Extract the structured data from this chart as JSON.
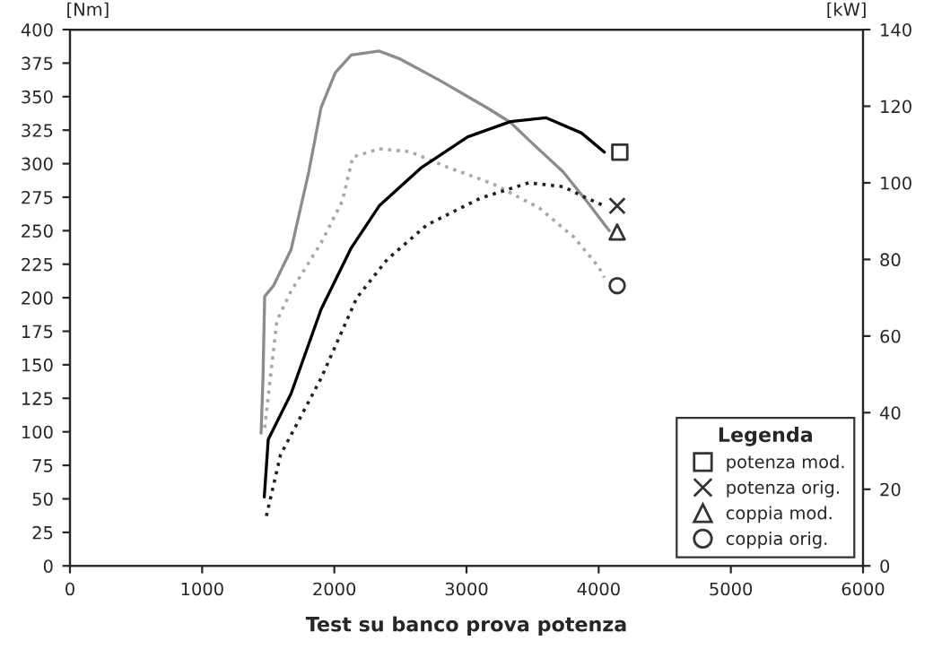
{
  "chart_data": {
    "type": "line",
    "title": "Test su banco prova potenza",
    "ylabel": "[Nm]",
    "y2label": "[kW]",
    "legend_title": "Legenda",
    "legend": "bottom right",
    "grid": false,
    "xlim": [
      0,
      6000
    ],
    "xticks": [
      0,
      1000,
      2000,
      3000,
      4000,
      5000,
      6000
    ],
    "ylim": [
      0,
      400
    ],
    "yticks": [
      0,
      25,
      50,
      75,
      100,
      125,
      150,
      175,
      200,
      225,
      250,
      275,
      300,
      325,
      350,
      375,
      400
    ],
    "y2lim": [
      0,
      140
    ],
    "y2ticks": [
      0,
      20,
      40,
      60,
      80,
      100,
      120,
      140
    ],
    "series": [
      {
        "color": "#000000",
        "axis": "y2",
        "line_style": "solid",
        "x": [
          1470,
          1500,
          1673,
          1900,
          2128,
          2340,
          2660,
          3010,
          3333,
          3600,
          3870,
          4043
        ],
        "values": [
          18,
          33,
          45,
          67,
          83,
          94,
          104,
          112,
          116,
          117,
          113,
          108
        ]
      },
      {
        "color": "#222222",
        "axis": "y2",
        "line_style": "dotted",
        "x": [
          1486,
          1593,
          1900,
          2170,
          2400,
          2700,
          3105,
          3470,
          3730,
          3910,
          4043
        ],
        "values": [
          13,
          29,
          49,
          70,
          80,
          89,
          96,
          100,
          99,
          96,
          94
        ]
      },
      {
        "color": "#8c8c8c",
        "axis": "y",
        "line_style": "solid",
        "x": [
          1446,
          1460,
          1473,
          1540,
          1673,
          1807,
          1900,
          2008,
          2128,
          2340,
          2500,
          2800,
          3150,
          3330,
          3500,
          3730,
          3910,
          4080
        ],
        "values": [
          99,
          139,
          201,
          209,
          236,
          294,
          342,
          368,
          381,
          384,
          378,
          362,
          342,
          331,
          315,
          294,
          272,
          250
        ]
      },
      {
        "color": "#a8a8a8",
        "axis": "y",
        "line_style": "dotted",
        "x": [
          1473,
          1566,
          1673,
          1900,
          2060,
          2140,
          2340,
          2570,
          2840,
          3200,
          3550,
          3815,
          4000,
          4043
        ],
        "values": [
          103,
          183,
          205,
          241,
          272,
          305,
          311,
          309,
          298,
          285,
          267,
          245,
          223,
          215
        ]
      },
      {
        "name": "potenza mod.",
        "type": "scatter",
        "color": "#333333",
        "axis": "y2",
        "marker": "square",
        "x": [
          4160
        ],
        "values": [
          108
        ]
      },
      {
        "name": "potenza orig.",
        "type": "scatter",
        "color": "#333333",
        "axis": "y2",
        "marker": "cross",
        "x": [
          4140
        ],
        "values": [
          94
        ]
      },
      {
        "name": "coppia mod.",
        "type": "scatter",
        "color": "#333333",
        "axis": "y",
        "marker": "triangle",
        "x": [
          4140
        ],
        "values": [
          249
        ]
      },
      {
        "name": "coppia orig.",
        "type": "scatter",
        "color": "#333333",
        "axis": "y",
        "marker": "circle",
        "x": [
          4140
        ],
        "values": [
          209
        ]
      }
    ]
  }
}
